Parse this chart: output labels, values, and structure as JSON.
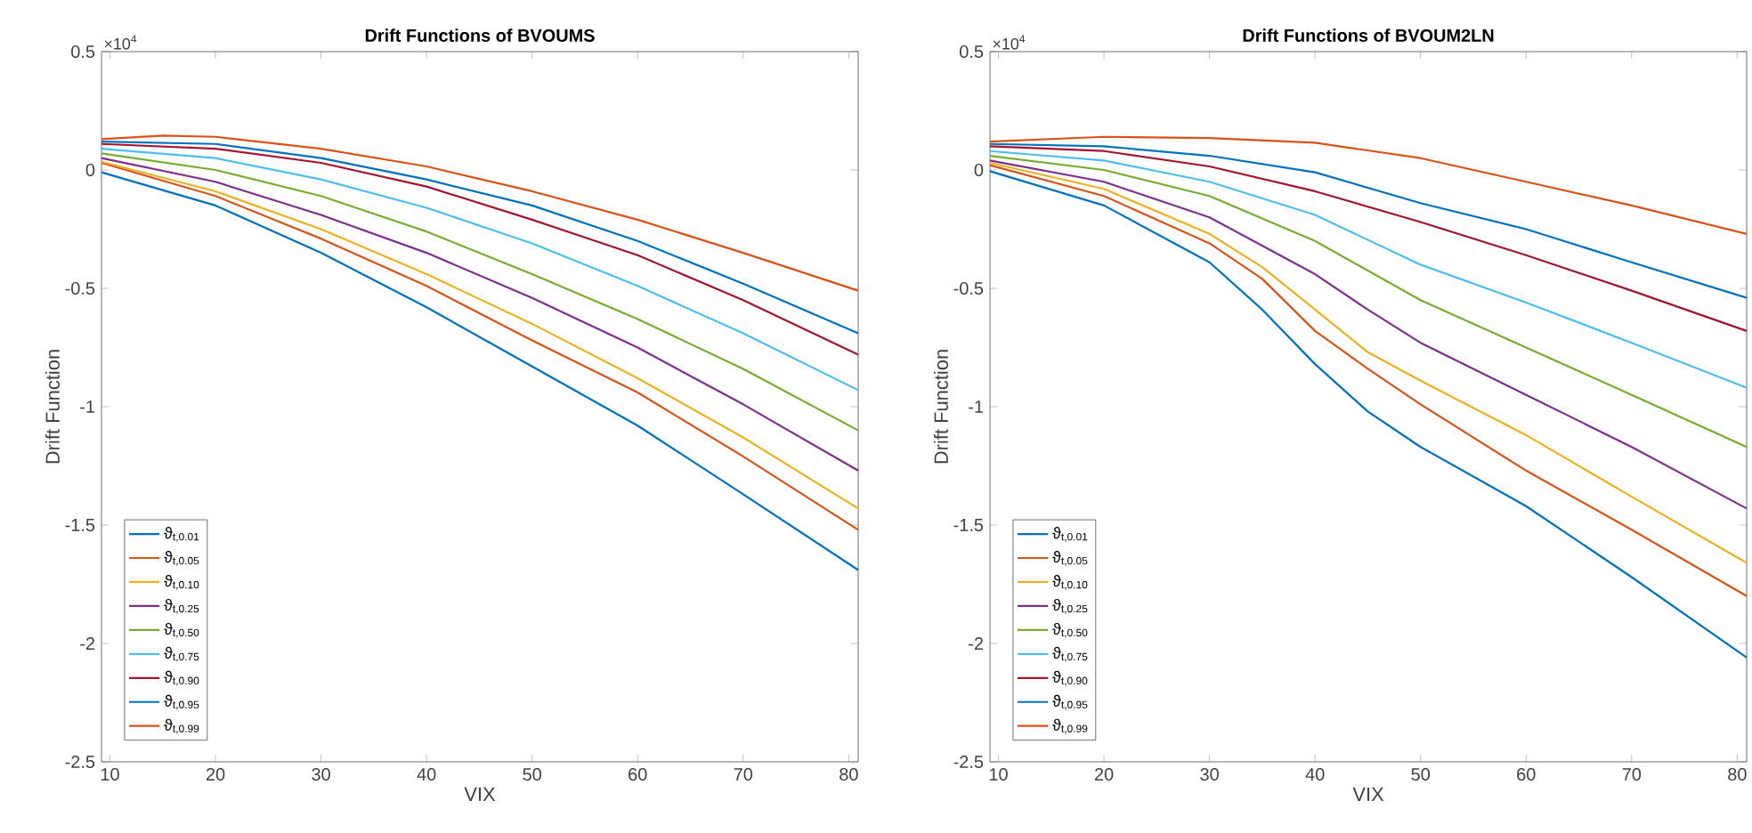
{
  "chart_data": [
    {
      "type": "line",
      "title": "Drift Functions of BVOUMS",
      "xlabel": "VIX",
      "ylabel": "Drift Function",
      "annotations": [
        "×10$^{4}$"
      ],
      "legend": "bottom left",
      "grid": false,
      "line_style": "solid",
      "xlim": [
        9.2,
        80.9
      ],
      "ylim": [
        -2.5,
        0.5
      ],
      "xticks": [
        10,
        20,
        30,
        40,
        50,
        60,
        70,
        80
      ],
      "yticks": [
        -2.5,
        -2,
        -1.5,
        -1,
        -0.5,
        0,
        0.5
      ],
      "x": [
        9.2,
        20,
        30,
        40,
        50,
        60,
        70,
        80.9
      ],
      "series": [
        {
          "name": "ϑ$_{t,0.01}$",
          "color": "#0072bd",
          "values": [
            -0.01,
            -0.15,
            -0.35,
            -0.58,
            -0.83,
            -1.08,
            -1.37,
            -1.69
          ]
        },
        {
          "name": "ϑ$_{t,0.05}$",
          "color": "#d95319",
          "values": [
            0.03,
            -0.11,
            -0.29,
            -0.49,
            -0.72,
            -0.94,
            -1.21,
            -1.52
          ]
        },
        {
          "name": "ϑ$_{t,0.10}$",
          "color": "#edb120",
          "values": [
            0.035,
            -0.09,
            -0.25,
            -0.44,
            -0.65,
            -0.88,
            -1.13,
            -1.43
          ]
        },
        {
          "name": "ϑ$_{t,0.25}$",
          "color": "#7e2f8e",
          "values": [
            0.05,
            -0.05,
            -0.19,
            -0.35,
            -0.54,
            -0.75,
            -0.99,
            -1.27
          ]
        },
        {
          "name": "ϑ$_{t,0.50}$",
          "color": "#77ac30",
          "values": [
            0.07,
            0.0,
            -0.11,
            -0.26,
            -0.44,
            -0.63,
            -0.84,
            -1.1
          ]
        },
        {
          "name": "ϑ$_{t,0.75}$",
          "color": "#4dbeee",
          "values": [
            0.09,
            0.05,
            -0.04,
            -0.16,
            -0.31,
            -0.49,
            -0.69,
            -0.93
          ]
        },
        {
          "name": "ϑ$_{t,0.90}$",
          "color": "#a2142f",
          "values": [
            0.11,
            0.09,
            0.03,
            -0.07,
            -0.21,
            -0.36,
            -0.55,
            -0.78
          ]
        },
        {
          "name": "ϑ$_{t,0.95}$",
          "color": "#0072bd",
          "values": [
            0.12,
            0.11,
            0.05,
            -0.04,
            -0.15,
            -0.3,
            -0.48,
            -0.69
          ]
        },
        {
          "name": "ϑ$_{t,0.99}$",
          "color": "#d95319",
          "x": [
            9.2,
            15,
            20,
            30,
            40,
            50,
            60,
            70,
            80.9
          ],
          "values": [
            0.13,
            0.145,
            0.14,
            0.09,
            0.015,
            -0.09,
            -0.21,
            -0.35,
            -0.51
          ]
        }
      ]
    },
    {
      "type": "line",
      "title": "Drift Functions of BVOUM2LN",
      "xlabel": "VIX",
      "ylabel": "Drift Function",
      "annotations": [
        "×10$^{4}$"
      ],
      "legend": "bottom left",
      "grid": false,
      "line_style": "solid",
      "xlim": [
        9.2,
        80.9
      ],
      "ylim": [
        -2.5,
        0.5
      ],
      "xticks": [
        10,
        20,
        30,
        40,
        50,
        60,
        70,
        80
      ],
      "yticks": [
        -2.5,
        -2,
        -1.5,
        -1,
        -0.5,
        0,
        0.5
      ],
      "x": [
        9.2,
        20,
        30,
        40,
        50,
        60,
        70,
        80.9
      ],
      "series": [
        {
          "name": "ϑ$_{t,0.01}$",
          "color": "#0072bd",
          "x": [
            9.2,
            20,
            30,
            35,
            40,
            45,
            50,
            60,
            70,
            80.9
          ],
          "values": [
            -0.005,
            -0.15,
            -0.39,
            -0.59,
            -0.82,
            -1.02,
            -1.17,
            -1.42,
            -1.72,
            -2.06
          ]
        },
        {
          "name": "ϑ$_{t,0.05}$",
          "color": "#d95319",
          "x": [
            9.2,
            20,
            30,
            35,
            40,
            45,
            50,
            60,
            70,
            80.9
          ],
          "values": [
            0.02,
            -0.11,
            -0.31,
            -0.46,
            -0.68,
            -0.84,
            -0.99,
            -1.27,
            -1.52,
            -1.8
          ]
        },
        {
          "name": "ϑ$_{t,0.10}$",
          "color": "#edb120",
          "x": [
            9.2,
            20,
            30,
            35,
            40,
            45,
            50,
            60,
            70,
            80.9
          ],
          "values": [
            0.03,
            -0.08,
            -0.27,
            -0.41,
            -0.59,
            -0.77,
            -0.89,
            -1.12,
            -1.38,
            -1.66
          ]
        },
        {
          "name": "ϑ$_{t,0.25}$",
          "color": "#7e2f8e",
          "x": [
            9.2,
            20,
            30,
            40,
            45,
            50,
            60,
            70,
            80.9
          ],
          "values": [
            0.04,
            -0.05,
            -0.2,
            -0.44,
            -0.59,
            -0.73,
            -0.95,
            -1.17,
            -1.43
          ]
        },
        {
          "name": "ϑ$_{t,0.50}$",
          "color": "#77ac30",
          "values": [
            0.06,
            0.0,
            -0.11,
            -0.3,
            -0.55,
            -0.75,
            -0.95,
            -1.17
          ]
        },
        {
          "name": "ϑ$_{t,0.75}$",
          "color": "#4dbeee",
          "values": [
            0.08,
            0.04,
            -0.05,
            -0.19,
            -0.4,
            -0.56,
            -0.73,
            -0.92
          ]
        },
        {
          "name": "ϑ$_{t,0.90}$",
          "color": "#a2142f",
          "values": [
            0.1,
            0.08,
            0.015,
            -0.09,
            -0.22,
            -0.36,
            -0.51,
            -0.68
          ]
        },
        {
          "name": "ϑ$_{t,0.95}$",
          "color": "#0072bd",
          "values": [
            0.11,
            0.1,
            0.06,
            -0.01,
            -0.14,
            -0.25,
            -0.39,
            -0.54
          ]
        },
        {
          "name": "ϑ$_{t,0.99}$",
          "color": "#d95319",
          "values": [
            0.12,
            0.14,
            0.135,
            0.115,
            0.05,
            -0.05,
            -0.15,
            -0.27
          ]
        }
      ]
    }
  ]
}
